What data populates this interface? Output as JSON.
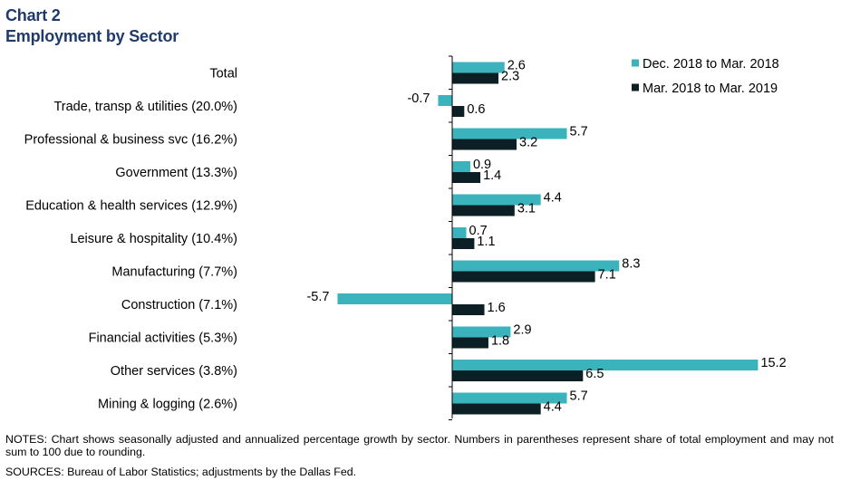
{
  "header": {
    "title": "Chart 2",
    "subtitle": "Employment by Sector"
  },
  "colors": {
    "series1": "#3bb3bc",
    "series2": "#0b1f24",
    "title": "#1f3a6b"
  },
  "chart_data": {
    "type": "bar",
    "orientation": "horizontal",
    "title": "Employment by Sector",
    "categories": [
      "Total",
      "Trade, transp & utilities (20.0%)",
      "Professional & business svc (16.2%)",
      "Government (13.3%)",
      "Education & health services (12.9%)",
      "Leisure & hospitality (10.4%)",
      "Manufacturing (7.7%)",
      "Construction (7.1%)",
      "Financial activities (5.3%)",
      "Other services (3.8%)",
      "Mining & logging (2.6%)"
    ],
    "series": [
      {
        "name": "Dec. 2018 to Mar. 2018",
        "values": [
          2.6,
          -0.7,
          5.7,
          0.9,
          4.4,
          0.7,
          8.3,
          -5.7,
          2.9,
          15.2,
          5.7
        ],
        "labels": [
          "2.6",
          "-0.7",
          "5.7",
          "0.9",
          "4.4",
          "0.7",
          "8.3",
          "-5.7",
          "2.9",
          "15.2",
          "5.7"
        ]
      },
      {
        "name": "Mar. 2018 to Mar. 2019",
        "values": [
          2.3,
          0.6,
          3.2,
          1.4,
          3.1,
          1.1,
          7.1,
          1.6,
          1.8,
          6.5,
          4.4
        ],
        "labels": [
          "2.3",
          "0.6",
          "3.2",
          "1.4",
          "3.1",
          "1.1",
          "7.1",
          "1.6",
          "1.8",
          "6.5",
          "4.4"
        ]
      }
    ],
    "legend": "top-right",
    "grid": false
  },
  "footer": {
    "notes": "NOTES: Chart shows seasonally adjusted and annualized percentage growth by sector. Numbers in parentheses represent share of total employment and may not sum to 100 due to rounding.",
    "sources": "SOURCES: Bureau of Labor Statistics; adjustments by the Dallas Fed."
  }
}
